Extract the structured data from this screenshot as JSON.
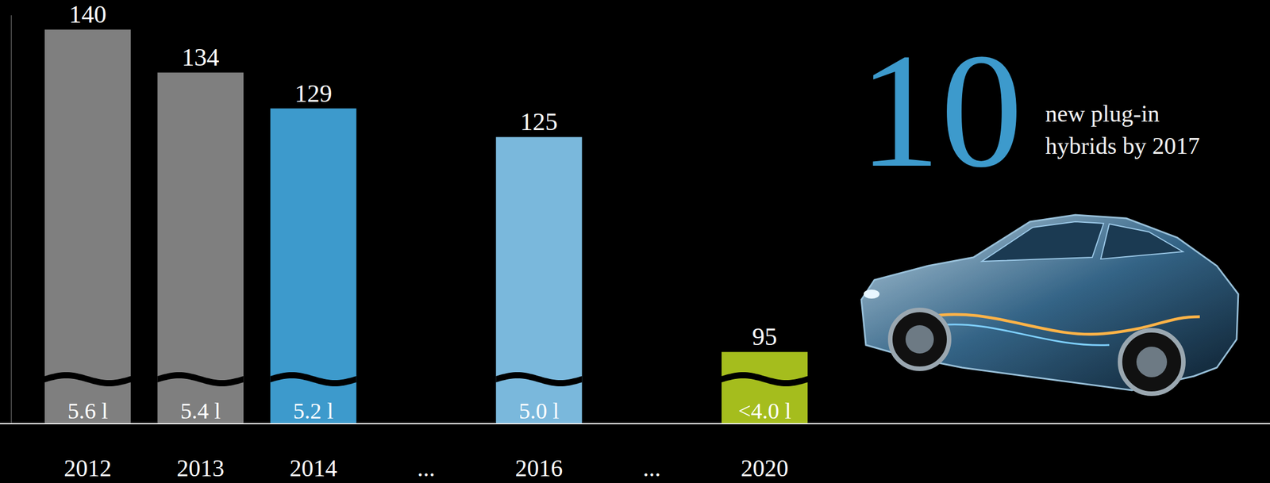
{
  "chart_data": {
    "type": "bar",
    "categories": [
      "2012",
      "2013",
      "2014",
      "...",
      "2016",
      "...",
      "2020"
    ],
    "values": [
      140,
      134,
      129,
      null,
      125,
      null,
      95
    ],
    "colors": [
      "#7f7f7f",
      "#7f7f7f",
      "#3d9acc",
      null,
      "#7ab8dc",
      null,
      "#a5bd1d"
    ],
    "consumption_labels": [
      "5.6 l",
      "5.4 l",
      "5.2 l",
      null,
      "5.0 l",
      null,
      "<4.0 l"
    ],
    "ylim": [
      85,
      142
    ],
    "yticks": [],
    "grid": false,
    "tick_labels": "x",
    "data_labels": true,
    "annotations": [
      {
        "text": "10"
      },
      {
        "text": "new plug-in"
      },
      {
        "text": "hybrids by 2017"
      }
    ]
  }
}
